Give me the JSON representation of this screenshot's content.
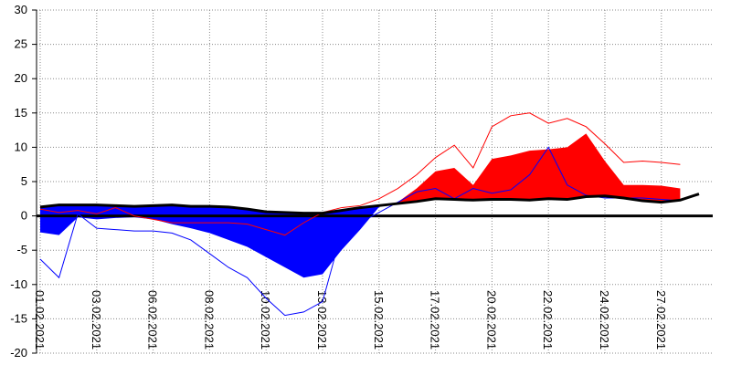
{
  "chart_data": {
    "type": "band",
    "categories": [
      "01.02.2021",
      null,
      null,
      "03.02.2021",
      null,
      null,
      "06.02.2021",
      null,
      null,
      "08.02.2021",
      null,
      null,
      "10.02.2021",
      null,
      null,
      "13.02.2021",
      null,
      null,
      "15.02.2021",
      null,
      null,
      "17.02.2021",
      null,
      null,
      "20.02.2021",
      null,
      null,
      "22.02.2021",
      null,
      null,
      "24.02.2021",
      null,
      null,
      "27.02.2021",
      null,
      null
    ],
    "ylim": [
      -20,
      30
    ],
    "yticks": [
      -20,
      -15,
      -10,
      -5,
      0,
      5,
      10,
      15,
      20,
      25,
      30
    ],
    "grid": true,
    "fill": {
      "above": "#ff0000",
      "below": "#0000ff"
    },
    "series": [
      {
        "color": "#000000",
        "values": [
          1.3,
          1.6,
          1.6,
          1.6,
          1.5,
          1.4,
          1.5,
          1.6,
          1.4,
          1.4,
          1.3,
          1.0,
          0.6,
          0.5,
          0.4,
          0.4,
          0.8,
          1.2,
          1.5,
          1.8,
          2.1,
          2.5,
          2.4,
          2.3,
          2.4,
          2.4,
          2.3,
          2.5,
          2.4,
          2.8,
          2.9,
          2.6,
          2.2,
          2.0,
          2.3,
          3.2
        ]
      },
      {
        "values": [
          -2.4,
          -2.8,
          -0.2,
          -0.5,
          -0.3,
          -0.2,
          -0.5,
          -1.2,
          -1.8,
          -2.5,
          -3.5,
          -4.5,
          -6,
          -7.5,
          -9,
          -8.5,
          -5,
          -2,
          1.3,
          2,
          4,
          6.5,
          7,
          4.5,
          8.3,
          8.8,
          9.5,
          9.7,
          10,
          12,
          8,
          4.5,
          4.5,
          4.4,
          4,
          null
        ]
      },
      {
        "color": "#ff0000",
        "values": [
          1.0,
          0.5,
          0.8,
          0.3,
          1.2,
          0,
          -0.5,
          -1,
          -1,
          -1,
          -1,
          -1.2,
          -2,
          -2.8,
          -1,
          0.5,
          1.2,
          1.5,
          2.5,
          4,
          6,
          8.5,
          10.3,
          7,
          13,
          14.6,
          15,
          13.5,
          14.2,
          13,
          10.5,
          7.8,
          8,
          7.8,
          7.5,
          null
        ]
      },
      {
        "color": "#0000ff",
        "values": [
          -6.3,
          -9,
          0.3,
          -1.8,
          -2,
          -2.2,
          -2.2,
          -2.5,
          -3.5,
          -5.5,
          -7.5,
          -9,
          -12,
          -14.5,
          -14,
          -12.5,
          -2.5,
          -1,
          0.5,
          2,
          3.5,
          4,
          2.5,
          4,
          3.3,
          3.8,
          6,
          10,
          4.5,
          3,
          2.6,
          2.6,
          2.6,
          2.4,
          2.2,
          null
        ]
      }
    ]
  }
}
